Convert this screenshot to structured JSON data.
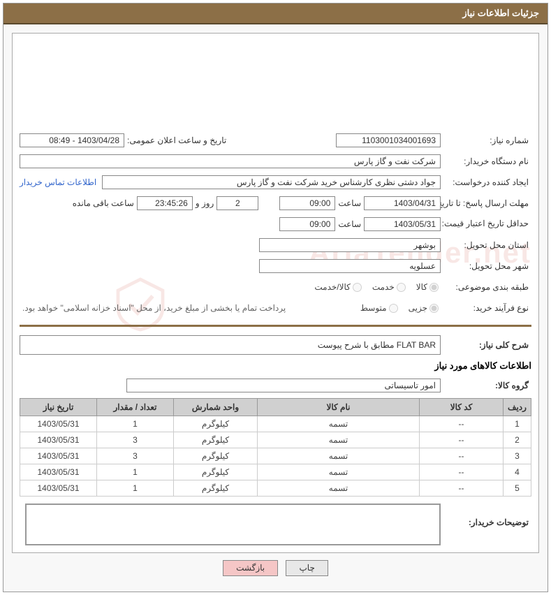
{
  "header": {
    "title": "جزئیات اطلاعات نیاز"
  },
  "fields": {
    "need_number_label": "شماره نیاز:",
    "need_number_value": "1103001034001693",
    "announce_label": "تاریخ و ساعت اعلان عمومی:",
    "announce_value": "1403/04/28 - 08:49",
    "buyer_org_label": "نام دستگاه خریدار:",
    "buyer_org_value": "شرکت نفت و گاز پارس",
    "requester_label": "ایجاد کننده درخواست:",
    "requester_value": "جواد دشتی نظری کارشناس خرید  شرکت نفت و گاز پارس",
    "buyer_contact_link": "اطلاعات تماس خریدار",
    "response_deadline_label": "مهلت ارسال پاسخ: تا تاریخ:",
    "response_date": "1403/04/31",
    "time_label": "ساعت",
    "response_time": "09:00",
    "days_value": "2",
    "days_label": "روز و",
    "countdown": "23:45:26",
    "remaining_label": "ساعت باقی مانده",
    "validity_label": "حداقل تاریخ اعتبار قیمت: تا تاریخ:",
    "validity_date": "1403/05/31",
    "validity_time": "09:00",
    "province_label": "استان محل تحویل:",
    "province_value": "بوشهر",
    "city_label": "شهر محل تحویل:",
    "city_value": "عسلویه",
    "topic_label": "طبقه بندی موضوعی:",
    "topic_goods": "کالا",
    "topic_service": "خدمت",
    "topic_goods_service": "کالا/خدمت",
    "process_label": "نوع فرآیند خرید:",
    "process_partial": "جزیی",
    "process_medium": "متوسط",
    "payment_note": "پرداخت تمام یا بخشی از مبلغ خرید، از محل \"اسناد خزانه اسلامی\" خواهد بود.",
    "desc_label": "شرح کلی نیاز:",
    "desc_value": "FLAT BAR مطابق با شرح پیوست",
    "goods_section_title": "اطلاعات کالاهای مورد نیاز",
    "group_label": "گروه کالا:",
    "group_value": "امور تاسیساتی",
    "buyer_notes_label": "توضیحات خریدار:"
  },
  "table": {
    "columns": [
      "ردیف",
      "کد کالا",
      "نام کالا",
      "واحد شمارش",
      "تعداد / مقدار",
      "تاریخ نیاز"
    ],
    "rows": [
      [
        "1",
        "--",
        "تسمه",
        "کیلوگرم",
        "1",
        "1403/05/31"
      ],
      [
        "2",
        "--",
        "تسمه",
        "کیلوگرم",
        "3",
        "1403/05/31"
      ],
      [
        "3",
        "--",
        "تسمه",
        "کیلوگرم",
        "3",
        "1403/05/31"
      ],
      [
        "4",
        "--",
        "تسمه",
        "کیلوگرم",
        "1",
        "1403/05/31"
      ],
      [
        "5",
        "--",
        "تسمه",
        "کیلوگرم",
        "1",
        "1403/05/31"
      ]
    ],
    "col_widths": [
      "40px",
      "120px",
      "auto",
      "120px",
      "110px",
      "110px"
    ]
  },
  "buttons": {
    "print": "چاپ",
    "back": "بازگشت"
  },
  "watermark": "AriaTender.net",
  "colors": {
    "header_bg": "#8c6f47",
    "divider": "#8c6f47",
    "th_bg": "#d0d0d0",
    "btn_back_bg": "#f5c6c6"
  }
}
